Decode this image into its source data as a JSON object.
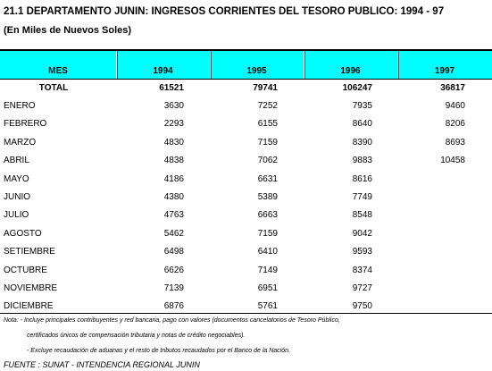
{
  "header": {
    "title": "21.1  DEPARTAMENTO JUNIN: INGRESOS CORRIENTES DEL TESORO PUBLICO: 1994 - 97",
    "subtitle": "(En Miles de Nuevos Soles)"
  },
  "table": {
    "columns": [
      "MES",
      "1994",
      "1995",
      "1996",
      "1997"
    ],
    "total": [
      "TOTAL",
      61521,
      79741,
      106247,
      36817
    ],
    "rows": [
      [
        "ENERO",
        3630,
        7252,
        7935,
        9460
      ],
      [
        "FEBRERO",
        2293,
        6155,
        8640,
        8206
      ],
      [
        "MARZO",
        4830,
        7159,
        8390,
        8693
      ],
      [
        "ABRIL",
        4838,
        7062,
        9883,
        10458
      ],
      [
        "MAYO",
        4186,
        6631,
        8616
      ],
      [
        "JUNIO",
        4380,
        5389,
        7749
      ],
      [
        "JULIO",
        4763,
        6663,
        8548
      ],
      [
        "AGOSTO",
        5462,
        7159,
        9042
      ],
      [
        "SETIEMBRE",
        6498,
        6410,
        9593
      ],
      [
        "OCTUBRE",
        6626,
        7149,
        8374
      ],
      [
        "NOVIEMBRE",
        7139,
        6951,
        9727
      ],
      [
        "DICIEMBRE",
        6876,
        5761,
        9750
      ]
    ]
  },
  "notes": [
    "Nota: - Incluye principales contribuyentes y red bancaria, pago con valores (documentos cancelatorios de Tesoro Público,",
    "certificados únicos de compensación tributaria y notas de crédito negociables).",
    "- Excluye recaudación de aduanas y el resto de tributos recaudados por el Banco de la Nación."
  ],
  "source": "FUENTE :  SUNAT - INTENDENCIA REGIONAL JUNIN"
}
